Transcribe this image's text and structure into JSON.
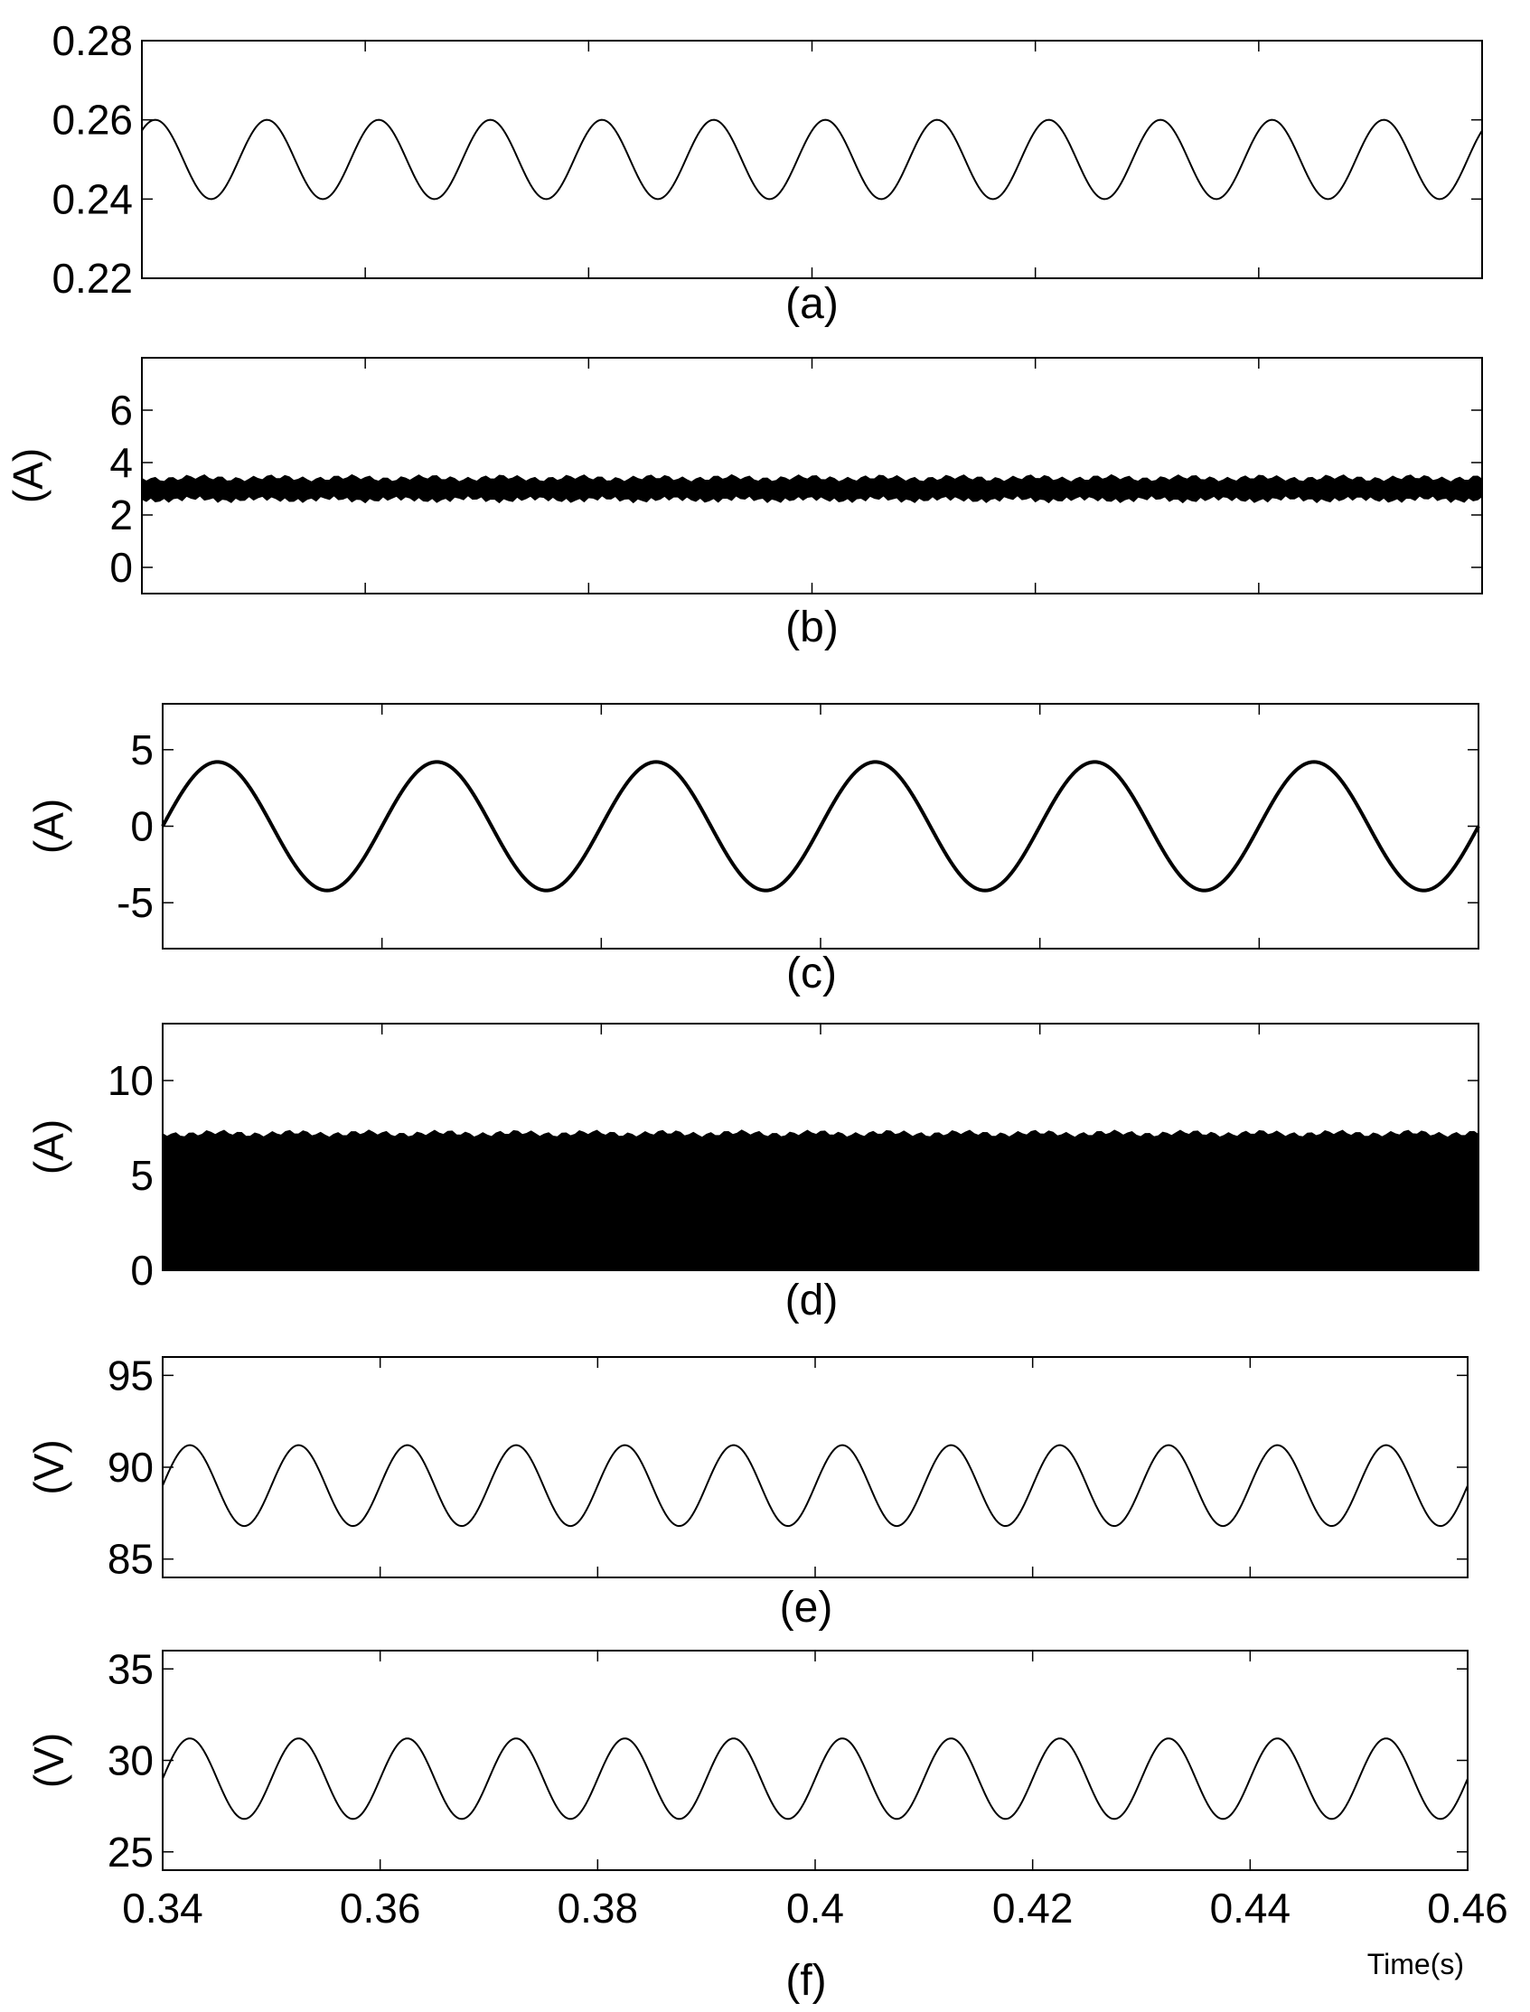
{
  "chart_data": [
    {
      "panel": "a",
      "type": "line",
      "caption": "(a)",
      "ylabel": "",
      "xlim": [
        0.34,
        0.46
      ],
      "ylim": [
        0.22,
        0.28
      ],
      "yticks": [
        0.22,
        0.24,
        0.26,
        0.28
      ],
      "ytick_labels": [
        "0.22",
        "0.24",
        "0.26",
        "0.28"
      ],
      "series": [
        {
          "kind": "sine",
          "offset": 0.25,
          "amplitude": 0.01,
          "period": 0.01,
          "peak_x": 0.3412
        }
      ]
    },
    {
      "panel": "b",
      "type": "area",
      "caption": "(b)",
      "ylabel": "(A)",
      "xlim": [
        0.34,
        0.46
      ],
      "ylim": [
        -1,
        8
      ],
      "yticks": [
        0,
        2,
        4,
        6
      ],
      "ytick_labels": [
        "0",
        "2",
        "4",
        "6"
      ],
      "series": [
        {
          "kind": "ripple band",
          "lower": 2.6,
          "upper": 3.4
        }
      ]
    },
    {
      "panel": "c",
      "type": "line",
      "caption": "(c)",
      "ylabel": "(A)",
      "xlim": [
        0.34,
        0.46
      ],
      "ylim": [
        -8,
        8
      ],
      "yticks": [
        -5,
        0,
        5
      ],
      "ytick_labels": [
        "-5",
        "0",
        "5"
      ],
      "series": [
        {
          "kind": "sine",
          "offset": 0,
          "amplitude": 4.2,
          "period": 0.02,
          "peak_x": 0.345
        }
      ]
    },
    {
      "panel": "d",
      "type": "area",
      "caption": "(d)",
      "ylabel": "(A)",
      "xlim": [
        0.34,
        0.46
      ],
      "ylim": [
        0,
        13
      ],
      "yticks": [
        0,
        5,
        10
      ],
      "ytick_labels": [
        "0",
        "5",
        "10"
      ],
      "series": [
        {
          "kind": "filled band",
          "lower": 0,
          "upper": 7.2
        }
      ]
    },
    {
      "panel": "e",
      "type": "line",
      "caption": "(e)",
      "ylabel": "(V)",
      "xlim": [
        0.34,
        0.46
      ],
      "ylim": [
        84,
        96
      ],
      "yticks": [
        85,
        90,
        95
      ],
      "ytick_labels": [
        "85",
        "90",
        "95"
      ],
      "series": [
        {
          "kind": "sine",
          "offset": 89,
          "amplitude": 2.2,
          "period": 0.01,
          "peak_x": 0.3425
        }
      ]
    },
    {
      "panel": "f",
      "type": "line",
      "caption": "(f)",
      "ylabel": "(V)",
      "xlabel": "Time(s)",
      "xlim": [
        0.34,
        0.46
      ],
      "ylim": [
        24,
        36
      ],
      "yticks": [
        25,
        30,
        35
      ],
      "ytick_labels": [
        "25",
        "30",
        "35"
      ],
      "xticks": [
        0.34,
        0.36,
        0.38,
        0.4,
        0.42,
        0.44,
        0.46
      ],
      "xtick_labels": [
        "0.34",
        "0.36",
        "0.38",
        "0.4",
        "0.42",
        "0.44",
        "0.46"
      ],
      "series": [
        {
          "kind": "sine",
          "offset": 29,
          "amplitude": 2.2,
          "period": 0.01,
          "peak_x": 0.3425
        }
      ]
    }
  ]
}
